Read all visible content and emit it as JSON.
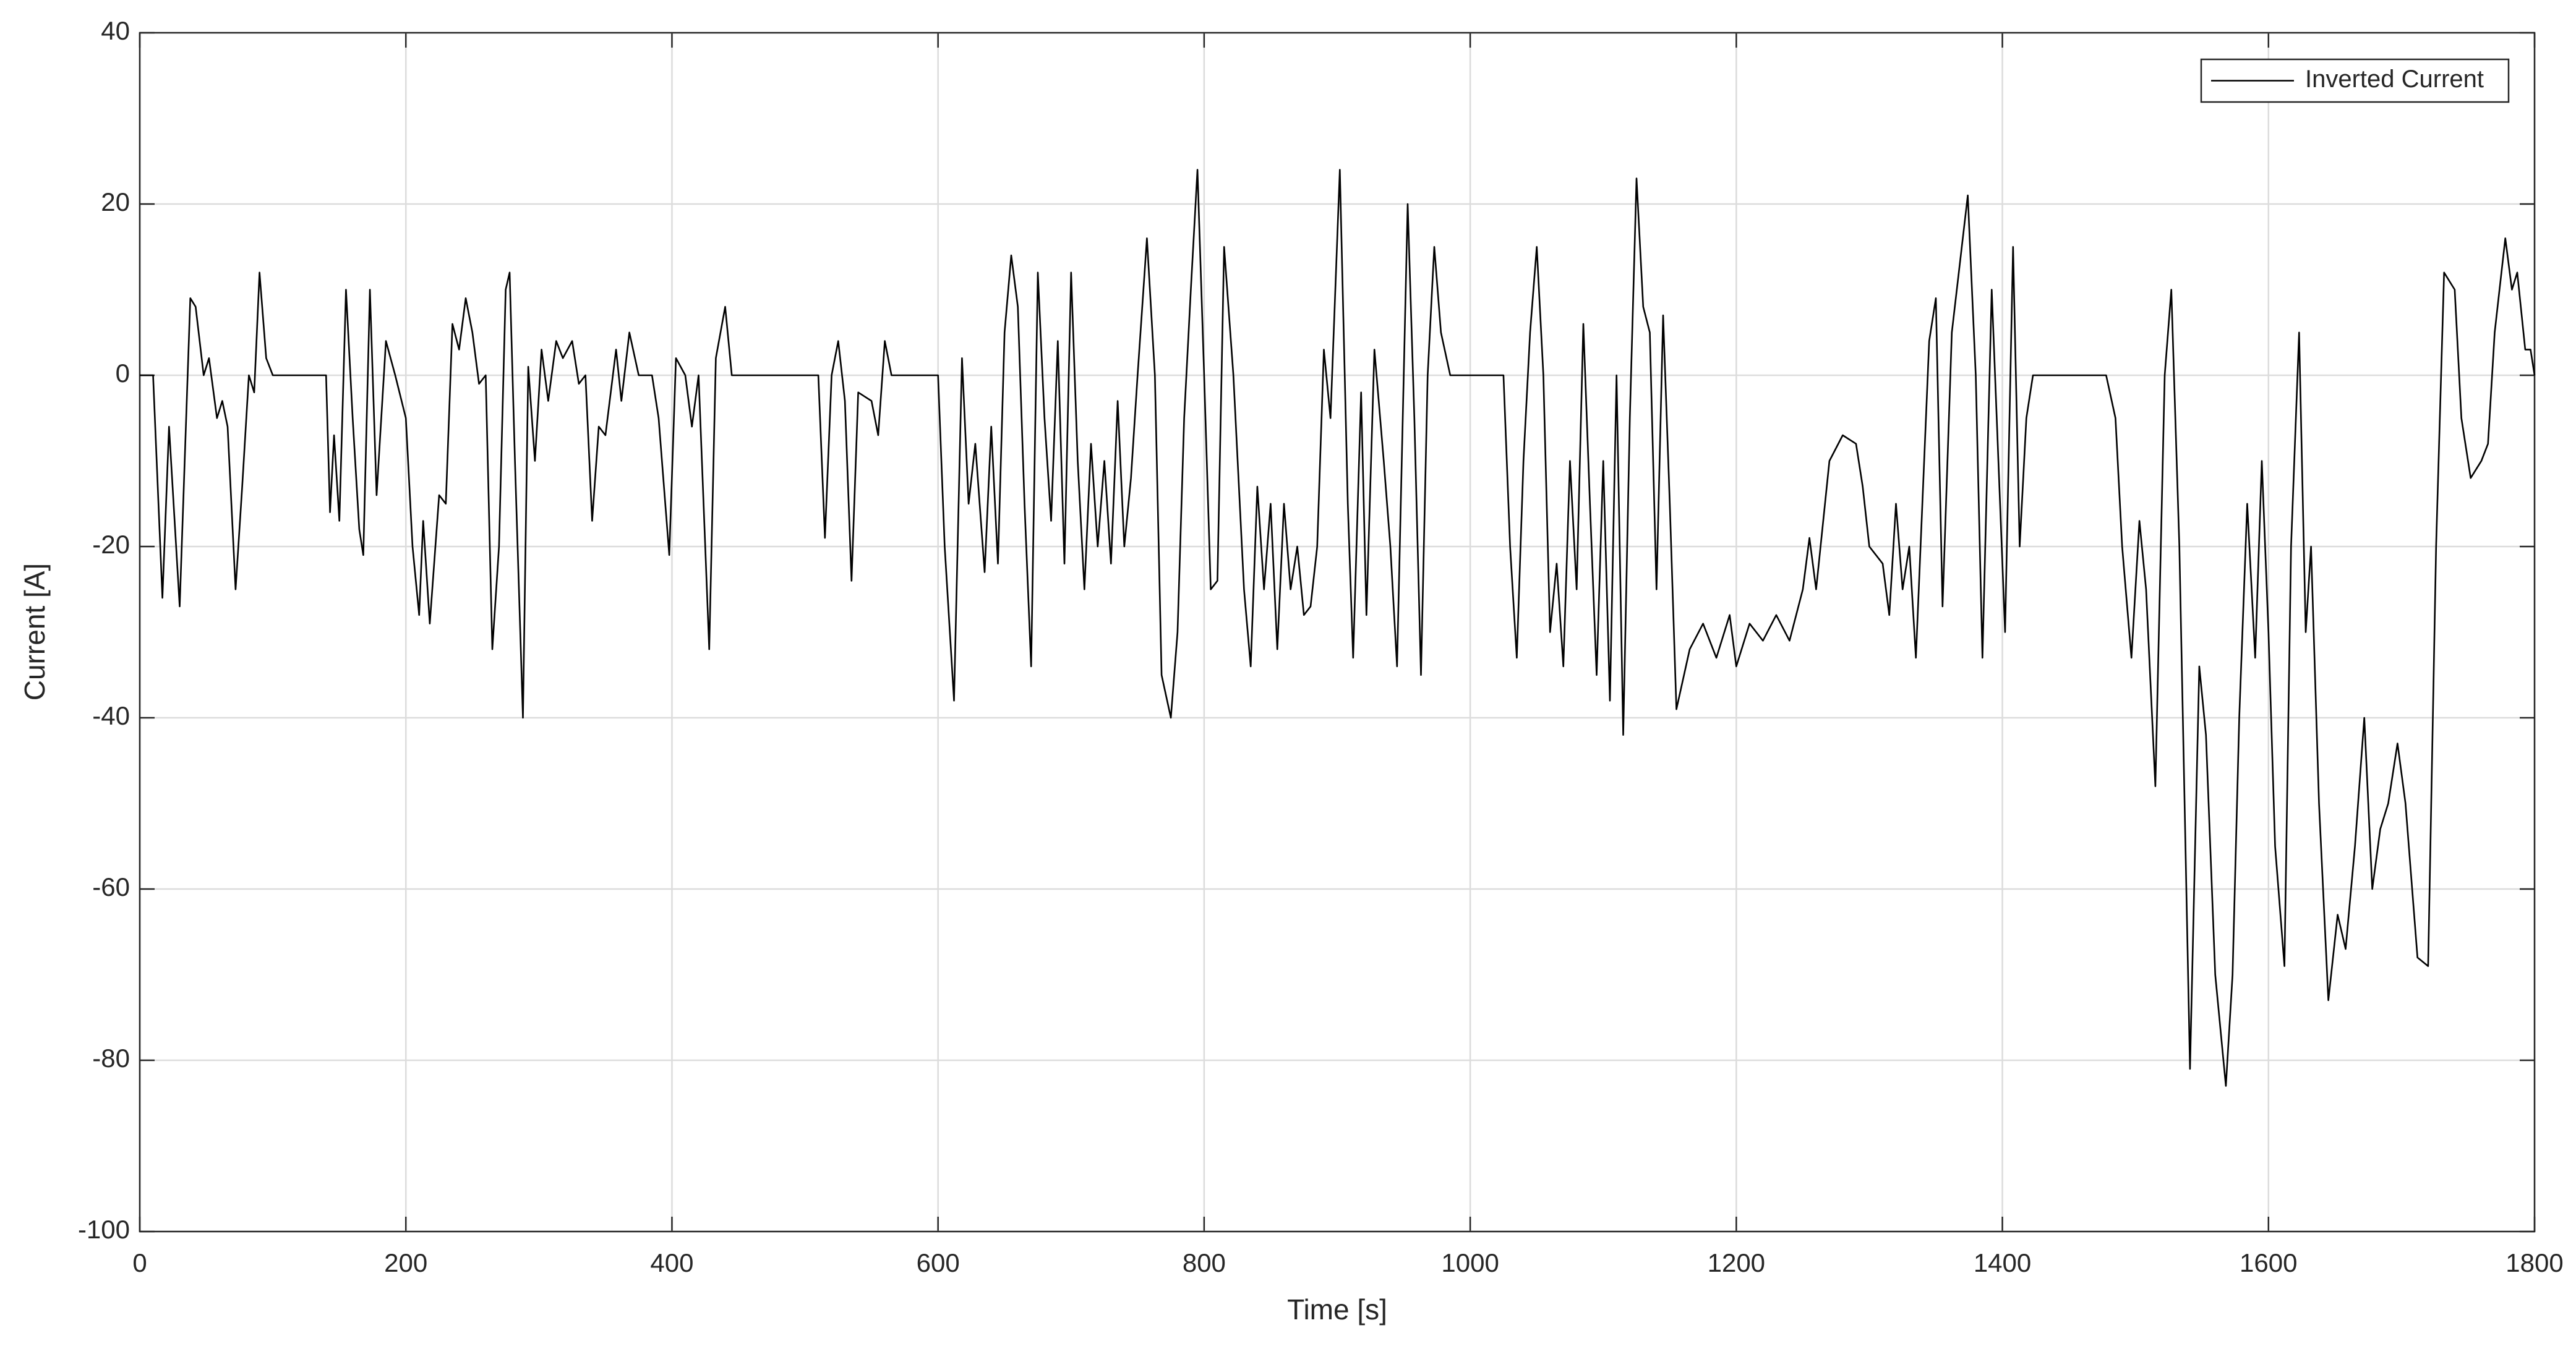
{
  "chart_data": {
    "type": "line",
    "xlabel": "Time [s]",
    "ylabel": "Current [A]",
    "xlim": [
      0,
      1800
    ],
    "ylim": [
      -100,
      40
    ],
    "xticks": [
      0,
      200,
      400,
      600,
      800,
      1000,
      1200,
      1400,
      1600,
      1800
    ],
    "yticks": [
      -100,
      -80,
      -60,
      -40,
      -20,
      0,
      20,
      40
    ],
    "grid": true,
    "legend": "upper right",
    "x": [
      0,
      10,
      17,
      22,
      30,
      38,
      42,
      48,
      52,
      58,
      62,
      66,
      72,
      77,
      82,
      86,
      90,
      95,
      100,
      140,
      143,
      146,
      150,
      155,
      160,
      165,
      168,
      173,
      178,
      185,
      192,
      200,
      205,
      210,
      213,
      218,
      225,
      230,
      235,
      240,
      245,
      250,
      255,
      260,
      265,
      270,
      275,
      278,
      282,
      288,
      292,
      297,
      302,
      307,
      313,
      318,
      325,
      330,
      335,
      340,
      345,
      350,
      358,
      362,
      368,
      375,
      385,
      390,
      398,
      403,
      410,
      415,
      420,
      428,
      433,
      440,
      445,
      510,
      515,
      520,
      525,
      530,
      535,
      540,
      550,
      555,
      560,
      565,
      600,
      605,
      612,
      618,
      623,
      628,
      635,
      640,
      645,
      650,
      655,
      660,
      665,
      670,
      675,
      680,
      685,
      690,
      695,
      700,
      705,
      710,
      715,
      720,
      725,
      730,
      735,
      740,
      745,
      750,
      757,
      763,
      768,
      775,
      780,
      785,
      790,
      795,
      800,
      805,
      810,
      815,
      822,
      830,
      835,
      840,
      845,
      850,
      855,
      860,
      865,
      870,
      875,
      880,
      885,
      890,
      895,
      902,
      908,
      912,
      918,
      922,
      928,
      935,
      940,
      945,
      953,
      958,
      963,
      968,
      973,
      978,
      985,
      1025,
      1030,
      1035,
      1040,
      1045,
      1050,
      1055,
      1060,
      1065,
      1070,
      1075,
      1080,
      1085,
      1090,
      1095,
      1100,
      1105,
      1110,
      1115,
      1120,
      1125,
      1130,
      1135,
      1140,
      1145,
      1150,
      1155,
      1165,
      1175,
      1185,
      1195,
      1200,
      1210,
      1220,
      1230,
      1240,
      1250,
      1255,
      1260,
      1270,
      1280,
      1290,
      1295,
      1300,
      1310,
      1315,
      1320,
      1325,
      1330,
      1335,
      1345,
      1350,
      1355,
      1362,
      1374,
      1380,
      1385,
      1392,
      1397,
      1402,
      1408,
      1413,
      1418,
      1423,
      1478,
      1485,
      1490,
      1497,
      1503,
      1508,
      1515,
      1522,
      1527,
      1533,
      1541,
      1548,
      1553,
      1560,
      1568,
      1573,
      1578,
      1584,
      1590,
      1595,
      1600,
      1605,
      1612,
      1617,
      1623,
      1628,
      1632,
      1638,
      1645,
      1652,
      1658,
      1665,
      1672,
      1678,
      1684,
      1690,
      1697,
      1703,
      1712,
      1720,
      1726,
      1732,
      1740,
      1745,
      1752,
      1760,
      1765,
      1770,
      1778,
      1783,
      1787,
      1793,
      1797,
      1800
    ],
    "series": [
      {
        "name": "Inverted Current",
        "color": "#000000",
        "values": [
          0,
          0,
          -26,
          -6,
          -27,
          9,
          8,
          0,
          2,
          -5,
          -3,
          -6,
          -25,
          -13,
          0,
          -2,
          12,
          2,
          0,
          0,
          -16,
          -7,
          -17,
          10,
          -5,
          -18,
          -21,
          10,
          -14,
          4,
          0,
          -5,
          -20,
          -28,
          -17,
          -29,
          -14,
          -15,
          6,
          3,
          9,
          5,
          -1,
          0,
          -32,
          -20,
          10,
          12,
          -10,
          -40,
          1,
          -10,
          3,
          -3,
          4,
          2,
          4,
          -1,
          0,
          -17,
          -6,
          -7,
          3,
          -3,
          5,
          0,
          0,
          -5,
          -21,
          2,
          0,
          -6,
          0,
          -32,
          2,
          8,
          0,
          0,
          -19,
          0,
          4,
          -3,
          -24,
          -2,
          -3,
          -7,
          4,
          0,
          0,
          -20,
          -38,
          2,
          -15,
          -8,
          -23,
          -6,
          -22,
          5,
          14,
          8,
          -15,
          -34,
          12,
          -5,
          -17,
          4,
          -22,
          12,
          -10,
          -25,
          -8,
          -20,
          -10,
          -22,
          -3,
          -20,
          -12,
          0,
          16,
          0,
          -35,
          -40,
          -30,
          -5,
          10,
          24,
          0,
          -25,
          -24,
          15,
          0,
          -25,
          -34,
          -13,
          -25,
          -15,
          -32,
          -15,
          -25,
          -20,
          -28,
          -27,
          -20,
          3,
          -5,
          24,
          -15,
          -33,
          -2,
          -28,
          3,
          -10,
          -20,
          -34,
          20,
          -5,
          -35,
          0,
          15,
          5,
          0,
          0,
          -20,
          -33,
          -10,
          5,
          15,
          0,
          -30,
          -22,
          -34,
          -10,
          -25,
          6,
          -15,
          -35,
          -10,
          -38,
          0,
          -42,
          -5,
          23,
          8,
          5,
          -25,
          7,
          -15,
          -39,
          -32,
          -29,
          -33,
          -28,
          -34,
          -29,
          -31,
          -28,
          -31,
          -25,
          -19,
          -25,
          -10,
          -7,
          -8,
          -13,
          -20,
          -22,
          -28,
          -15,
          -25,
          -20,
          -33,
          4,
          9,
          -27,
          5,
          21,
          0,
          -33,
          10,
          -10,
          -30,
          15,
          -20,
          -5,
          0,
          0,
          -5,
          -20,
          -33,
          -17,
          -25,
          -48,
          0,
          10,
          -20,
          -81,
          -34,
          -42,
          -70,
          -83,
          -70,
          -40,
          -15,
          -33,
          -10,
          -30,
          -55,
          -69,
          -20,
          5,
          -30,
          -20,
          -50,
          -73,
          -63,
          -67,
          -55,
          -40,
          -60,
          -53,
          -50,
          -43,
          -50,
          -68,
          -69,
          -20,
          12,
          10,
          -5,
          -12,
          -10,
          -8,
          5,
          16,
          10,
          12,
          3,
          3,
          0
        ]
      }
    ]
  }
}
